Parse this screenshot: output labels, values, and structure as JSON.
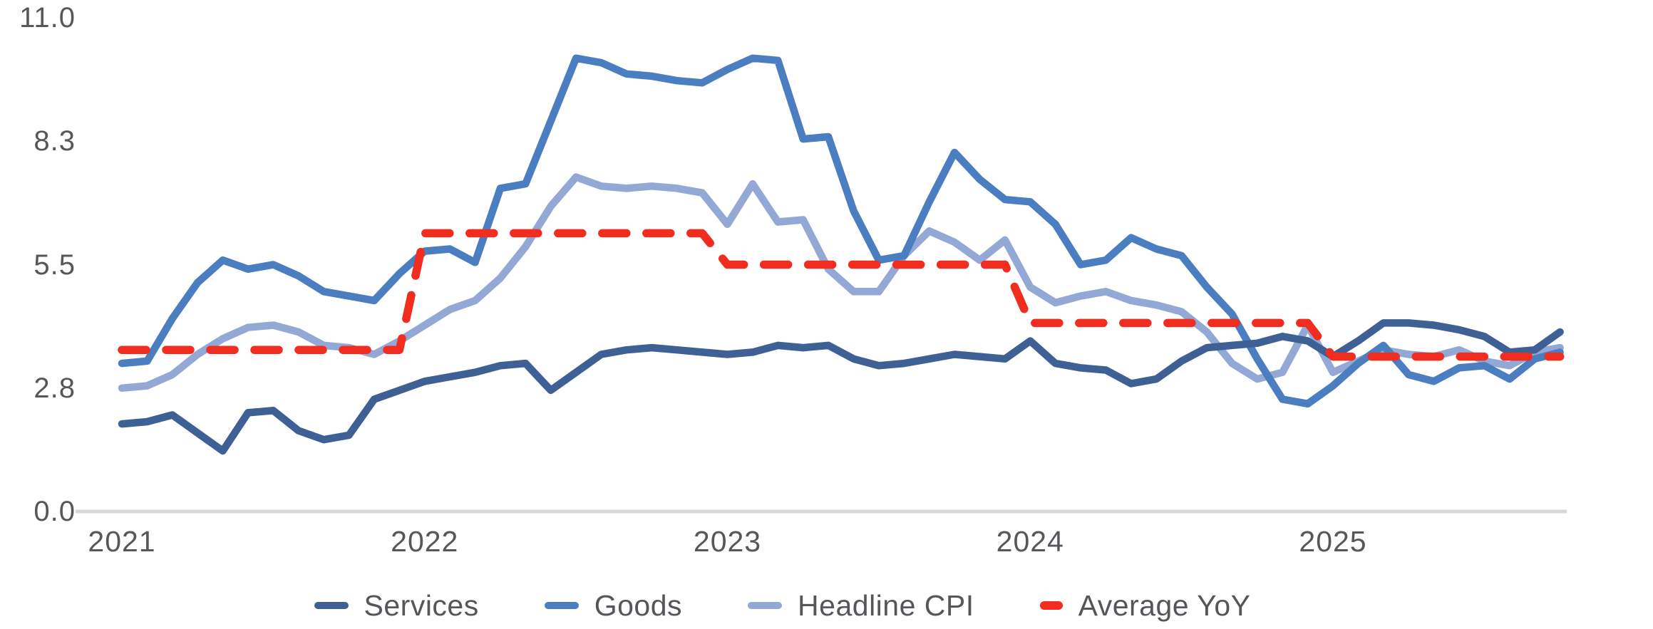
{
  "chart_data": {
    "type": "line",
    "title": "",
    "xlabel": "",
    "ylabel": "",
    "ylim": [
      0.0,
      11.0
    ],
    "grid": false,
    "legend_position": "bottom",
    "y_ticks": [
      {
        "value": 0.0,
        "label": "0.0"
      },
      {
        "value": 2.75,
        "label": "2.8"
      },
      {
        "value": 5.5,
        "label": "5.5"
      },
      {
        "value": 8.25,
        "label": "8.3"
      },
      {
        "value": 11.0,
        "label": "11.0"
      }
    ],
    "x_ticks": [
      {
        "month_index": 0,
        "label": "2021"
      },
      {
        "month_index": 12,
        "label": "2022"
      },
      {
        "month_index": 24,
        "label": "2023"
      },
      {
        "month_index": 36,
        "label": "2024"
      },
      {
        "month_index": 48,
        "label": "2025"
      }
    ],
    "x": [
      "2021-01",
      "2021-02",
      "2021-03",
      "2021-04",
      "2021-05",
      "2021-06",
      "2021-07",
      "2021-08",
      "2021-09",
      "2021-10",
      "2021-11",
      "2021-12",
      "2022-01",
      "2022-02",
      "2022-03",
      "2022-04",
      "2022-05",
      "2022-06",
      "2022-07",
      "2022-08",
      "2022-09",
      "2022-10",
      "2022-11",
      "2022-12",
      "2023-01",
      "2023-02",
      "2023-03",
      "2023-04",
      "2023-05",
      "2023-06",
      "2023-07",
      "2023-08",
      "2023-09",
      "2023-10",
      "2023-11",
      "2023-12",
      "2024-01",
      "2024-02",
      "2024-03",
      "2024-04",
      "2024-05",
      "2024-06",
      "2024-07",
      "2024-08",
      "2024-09",
      "2024-10",
      "2024-11",
      "2024-12",
      "2025-01",
      "2025-02",
      "2025-03",
      "2025-04",
      "2025-05",
      "2025-06",
      "2025-07",
      "2025-08",
      "2025-09",
      "2025-10"
    ],
    "series": [
      {
        "name": "Services",
        "color": "#3e6095",
        "line_style": "solid",
        "values": [
          1.95,
          2.0,
          2.15,
          1.75,
          1.35,
          2.2,
          2.25,
          1.8,
          1.6,
          1.7,
          2.5,
          2.7,
          2.9,
          3.0,
          3.1,
          3.25,
          3.3,
          2.7,
          3.1,
          3.5,
          3.6,
          3.65,
          3.6,
          3.55,
          3.5,
          3.55,
          3.7,
          3.65,
          3.7,
          3.4,
          3.25,
          3.3,
          3.4,
          3.5,
          3.45,
          3.4,
          3.8,
          3.3,
          3.2,
          3.15,
          2.85,
          2.95,
          3.35,
          3.65,
          3.7,
          3.75,
          3.9,
          3.8,
          3.45,
          3.8,
          4.2,
          4.2,
          4.15,
          4.05,
          3.9,
          3.55,
          3.6,
          4.0
        ]
      },
      {
        "name": "Goods",
        "color": "#4a7ec0",
        "line_style": "solid",
        "values": [
          3.3,
          3.35,
          4.3,
          5.1,
          5.6,
          5.4,
          5.5,
          5.25,
          4.9,
          4.8,
          4.7,
          5.3,
          5.8,
          5.85,
          5.55,
          7.2,
          7.3,
          8.7,
          10.1,
          10.0,
          9.75,
          9.7,
          9.6,
          9.55,
          9.85,
          10.1,
          10.05,
          8.3,
          8.35,
          6.7,
          5.6,
          5.7,
          6.9,
          8.0,
          7.4,
          6.95,
          6.9,
          6.4,
          5.5,
          5.6,
          6.1,
          5.85,
          5.7,
          5.0,
          4.4,
          3.4,
          2.5,
          2.4,
          2.8,
          3.3,
          3.7,
          3.05,
          2.9,
          3.2,
          3.25,
          2.95,
          3.4,
          3.55
        ]
      },
      {
        "name": "Headline CPI",
        "color": "#93a8d5",
        "line_style": "solid",
        "values": [
          2.75,
          2.8,
          3.05,
          3.5,
          3.85,
          4.1,
          4.15,
          4.0,
          3.7,
          3.65,
          3.5,
          3.8,
          4.15,
          4.5,
          4.7,
          5.2,
          5.9,
          6.8,
          7.45,
          7.25,
          7.2,
          7.25,
          7.2,
          7.1,
          6.4,
          7.3,
          6.45,
          6.5,
          5.4,
          4.9,
          4.9,
          5.7,
          6.25,
          6.0,
          5.6,
          6.05,
          5.0,
          4.65,
          4.8,
          4.9,
          4.7,
          4.6,
          4.45,
          4.0,
          3.3,
          2.95,
          3.1,
          4.15,
          3.1,
          3.35,
          3.6,
          3.5,
          3.45,
          3.6,
          3.35,
          3.25,
          3.55,
          3.65
        ]
      },
      {
        "name": "Average YoY",
        "color": "#f02d1f",
        "line_style": "dashed",
        "yearly_averages": {
          "2021": 3.6,
          "2022": 6.2,
          "2023": 5.5,
          "2024": 4.2,
          "2025": 3.45
        },
        "values": [
          3.6,
          3.6,
          3.6,
          3.6,
          3.6,
          3.6,
          3.6,
          3.6,
          3.6,
          3.6,
          3.6,
          3.6,
          6.2,
          6.2,
          6.2,
          6.2,
          6.2,
          6.2,
          6.2,
          6.2,
          6.2,
          6.2,
          6.2,
          6.2,
          5.5,
          5.5,
          5.5,
          5.5,
          5.5,
          5.5,
          5.5,
          5.5,
          5.5,
          5.5,
          5.5,
          5.5,
          4.2,
          4.2,
          4.2,
          4.2,
          4.2,
          4.2,
          4.2,
          4.2,
          4.2,
          4.2,
          4.2,
          4.2,
          3.45,
          3.45,
          3.45,
          3.45,
          3.45,
          3.45,
          3.45,
          3.45,
          3.45,
          3.45
        ]
      }
    ]
  },
  "colors": {
    "axis_text": "#56575b",
    "baseline": "#d9d9d9",
    "background": "#ffffff"
  }
}
